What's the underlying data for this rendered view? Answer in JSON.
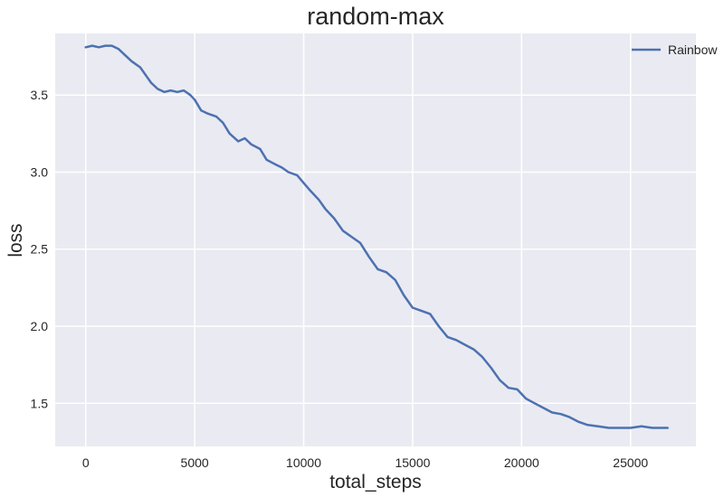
{
  "chart_data": {
    "type": "line",
    "title": "random-max",
    "xlabel": "total_steps",
    "ylabel": "loss",
    "xlim": [
      -1400,
      28000
    ],
    "ylim": [
      1.22,
      3.9
    ],
    "xticks": [
      0,
      5000,
      10000,
      15000,
      20000,
      25000
    ],
    "xtick_labels": [
      "0",
      "5000",
      "10000",
      "15000",
      "20000",
      "25000"
    ],
    "yticks": [
      1.5,
      2.0,
      2.5,
      3.0,
      3.5
    ],
    "ytick_labels": [
      "1.5",
      "2.0",
      "2.5",
      "3.0",
      "3.5"
    ],
    "grid": true,
    "legend_position": "top-right",
    "colors": {
      "background": "#EAEAF2",
      "grid": "#FFFFFF",
      "series": "#4C72B0"
    },
    "series": [
      {
        "name": "Rainbow",
        "x": [
          0,
          300,
          600,
          900,
          1200,
          1500,
          1800,
          2100,
          2500,
          2800,
          3000,
          3300,
          3600,
          3900,
          4200,
          4500,
          4800,
          5000,
          5300,
          5600,
          6000,
          6300,
          6600,
          7000,
          7300,
          7600,
          8000,
          8300,
          8700,
          9000,
          9300,
          9700,
          10000,
          10300,
          10700,
          11000,
          11400,
          11800,
          12200,
          12600,
          13000,
          13400,
          13800,
          14200,
          14600,
          15000,
          15400,
          15800,
          16200,
          16600,
          17000,
          17400,
          17800,
          18200,
          18600,
          19000,
          19400,
          19800,
          20200,
          20600,
          21000,
          21400,
          21800,
          22200,
          22600,
          23000,
          23500,
          24000,
          24500,
          25000,
          25500,
          26000,
          26700
        ],
        "y": [
          3.81,
          3.82,
          3.81,
          3.82,
          3.82,
          3.8,
          3.76,
          3.72,
          3.68,
          3.62,
          3.58,
          3.54,
          3.52,
          3.53,
          3.52,
          3.53,
          3.5,
          3.47,
          3.4,
          3.38,
          3.36,
          3.32,
          3.25,
          3.2,
          3.22,
          3.18,
          3.15,
          3.08,
          3.05,
          3.03,
          3.0,
          2.98,
          2.93,
          2.88,
          2.82,
          2.76,
          2.7,
          2.62,
          2.58,
          2.54,
          2.45,
          2.37,
          2.35,
          2.3,
          2.2,
          2.12,
          2.1,
          2.08,
          2.0,
          1.93,
          1.91,
          1.88,
          1.85,
          1.8,
          1.73,
          1.65,
          1.6,
          1.59,
          1.53,
          1.5,
          1.47,
          1.44,
          1.43,
          1.41,
          1.38,
          1.36,
          1.35,
          1.34,
          1.34,
          1.34,
          1.35,
          1.34,
          1.34
        ]
      }
    ]
  }
}
